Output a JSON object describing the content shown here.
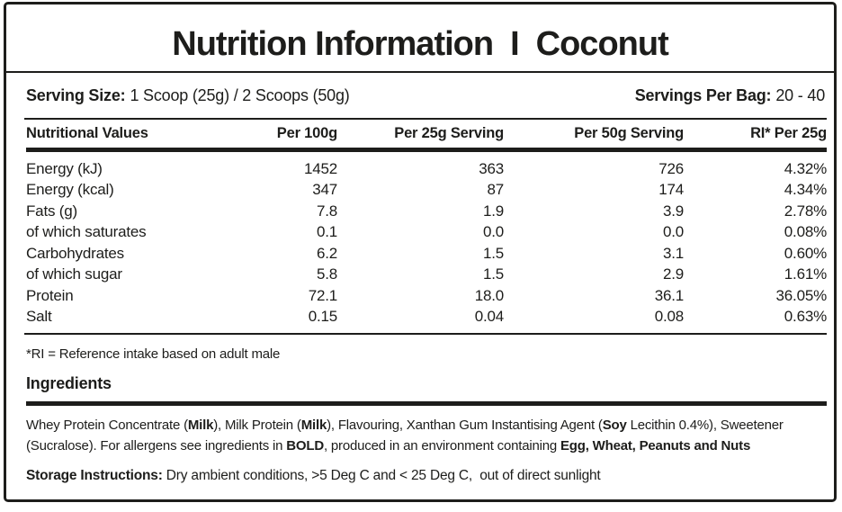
{
  "header": {
    "title_main": "Nutrition Information",
    "title_divider": "I",
    "title_flavor": "Coconut"
  },
  "serving": {
    "size_label": "Serving Size:",
    "size_value": "1 Scoop (25g) / 2 Scoops (50g)",
    "per_bag_label": "Servings Per Bag:",
    "per_bag_value": "20 - 40"
  },
  "table": {
    "headers": [
      "Nutritional Values",
      "Per 100g",
      "Per 25g Serving",
      "Per 50g Serving",
      "RI* Per 25g"
    ],
    "rows": [
      {
        "name": "Energy (kJ)",
        "per_100g": "1452",
        "per_25g": "363",
        "per_50g": "726",
        "ri_per_25g": "4.32%"
      },
      {
        "name": "Energy (kcal)",
        "per_100g": "347",
        "per_25g": "87",
        "per_50g": "174",
        "ri_per_25g": "4.34%"
      },
      {
        "name": "Fats (g)",
        "per_100g": "7.8",
        "per_25g": "1.9",
        "per_50g": "3.9",
        "ri_per_25g": "2.78%"
      },
      {
        "name": "of which saturates",
        "per_100g": "0.1",
        "per_25g": "0.0",
        "per_50g": "0.0",
        "ri_per_25g": "0.08%"
      },
      {
        "name": "Carbohydrates",
        "per_100g": "6.2",
        "per_25g": "1.5",
        "per_50g": "3.1",
        "ri_per_25g": "0.60%"
      },
      {
        "name": "of which sugar",
        "per_100g": "5.8",
        "per_25g": "1.5",
        "per_50g": "2.9",
        "ri_per_25g": "1.61%"
      },
      {
        "name": "Protein",
        "per_100g": "72.1",
        "per_25g": "18.0",
        "per_50g": "36.1",
        "ri_per_25g": "36.05%"
      },
      {
        "name": "Salt",
        "per_100g": "0.15",
        "per_25g": "0.04",
        "per_50g": "0.08",
        "ri_per_25g": "0.63%"
      }
    ]
  },
  "footnote": "*RI = Reference intake based on adult male",
  "ingredients": {
    "heading": "Ingredients",
    "segments": [
      {
        "text": "Whey Protein Concentrate (",
        "bold": false
      },
      {
        "text": "Milk",
        "bold": true
      },
      {
        "text": "), Milk Protein (",
        "bold": false
      },
      {
        "text": "Milk",
        "bold": true
      },
      {
        "text": "), Flavouring, Xanthan Gum Instantising Agent (",
        "bold": false
      },
      {
        "text": "Soy",
        "bold": true
      },
      {
        "text": " Lecithin 0.4%), Sweetener (Sucralose). For allergens see ingredients in ",
        "bold": false
      },
      {
        "text": "BOLD",
        "bold": true
      },
      {
        "text": ", produced in an environment containing ",
        "bold": false
      },
      {
        "text": "Egg, Wheat, Peanuts and Nuts",
        "bold": true
      }
    ]
  },
  "storage": {
    "label": "Storage Instructions:",
    "text": " Dry ambient conditions, >5 Deg C and < 25 Deg C,  out of direct sunlight"
  },
  "colors": {
    "ink": "#1d1d1b",
    "background": "#ffffff"
  }
}
